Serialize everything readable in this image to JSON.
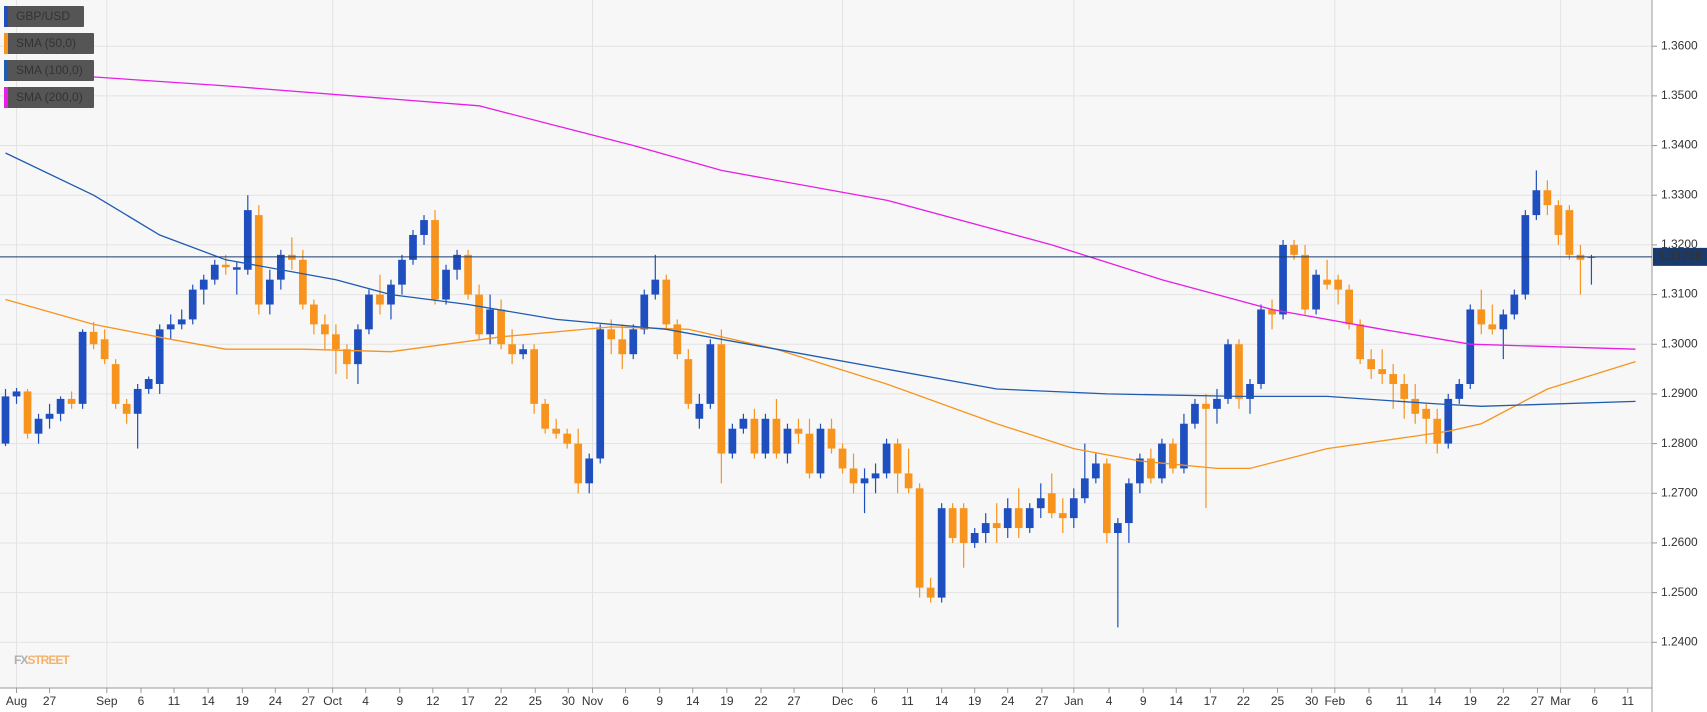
{
  "chart_data": {
    "type": "candlestick",
    "up_color": "#1f4fbf",
    "down_color": "#f7941d",
    "xlim": [
      -0.5,
      149.5
    ],
    "ylim": [
      1.2308,
      1.3693
    ],
    "yticks": [
      {
        "value": 1.24,
        "label": "1.2400"
      },
      {
        "value": 1.25,
        "label": "1.2500"
      },
      {
        "value": 1.26,
        "label": "1.2600"
      },
      {
        "value": 1.27,
        "label": "1.2700"
      },
      {
        "value": 1.28,
        "label": "1.2800"
      },
      {
        "value": 1.29,
        "label": "1.2900"
      },
      {
        "value": 1.3,
        "label": "1.3000"
      },
      {
        "value": 1.31,
        "label": "1.3100"
      },
      {
        "value": 1.32,
        "label": "1.3200"
      },
      {
        "value": 1.33,
        "label": "1.3300"
      },
      {
        "value": 1.34,
        "label": "1.3400"
      },
      {
        "value": 1.35,
        "label": "1.3500"
      },
      {
        "value": 1.36,
        "label": "1.3600"
      }
    ],
    "xticks": [
      {
        "value": 1,
        "label": "Aug"
      },
      {
        "value": 4,
        "label": "27"
      },
      {
        "value": 9.2,
        "label": "Sep"
      },
      {
        "value": 12.3,
        "label": "6"
      },
      {
        "value": 15.3,
        "label": "11"
      },
      {
        "value": 18.4,
        "label": "14"
      },
      {
        "value": 21.5,
        "label": "19"
      },
      {
        "value": 24.5,
        "label": "24"
      },
      {
        "value": 27.5,
        "label": "27"
      },
      {
        "value": 29.7,
        "label": "Oct"
      },
      {
        "value": 32.7,
        "label": "4"
      },
      {
        "value": 35.8,
        "label": "9"
      },
      {
        "value": 38.8,
        "label": "12"
      },
      {
        "value": 42,
        "label": "17"
      },
      {
        "value": 45,
        "label": "22"
      },
      {
        "value": 48.1,
        "label": "25"
      },
      {
        "value": 51.1,
        "label": "30"
      },
      {
        "value": 53.3,
        "label": "Nov"
      },
      {
        "value": 56.3,
        "label": "6"
      },
      {
        "value": 59.4,
        "label": "9"
      },
      {
        "value": 62.4,
        "label": "14"
      },
      {
        "value": 65.5,
        "label": "19"
      },
      {
        "value": 68.6,
        "label": "22"
      },
      {
        "value": 71.6,
        "label": "27"
      },
      {
        "value": 76,
        "label": "Dec"
      },
      {
        "value": 78.9,
        "label": "6"
      },
      {
        "value": 81.9,
        "label": "11"
      },
      {
        "value": 85,
        "label": "14"
      },
      {
        "value": 88,
        "label": "19"
      },
      {
        "value": 91,
        "label": "24"
      },
      {
        "value": 94.1,
        "label": "27"
      },
      {
        "value": 97,
        "label": "Jan"
      },
      {
        "value": 100.2,
        "label": "4"
      },
      {
        "value": 103.3,
        "label": "9"
      },
      {
        "value": 106.3,
        "label": "14"
      },
      {
        "value": 109.4,
        "label": "17"
      },
      {
        "value": 112.4,
        "label": "22"
      },
      {
        "value": 115.5,
        "label": "25"
      },
      {
        "value": 118.6,
        "label": "30"
      },
      {
        "value": 120.7,
        "label": "Feb"
      },
      {
        "value": 123.8,
        "label": "6"
      },
      {
        "value": 126.8,
        "label": "11"
      },
      {
        "value": 129.8,
        "label": "14"
      },
      {
        "value": 133,
        "label": "19"
      },
      {
        "value": 136,
        "label": "22"
      },
      {
        "value": 139.1,
        "label": "27"
      },
      {
        "value": 141.2,
        "label": "Mar"
      },
      {
        "value": 144.3,
        "label": "6"
      },
      {
        "value": 147.3,
        "label": "11"
      }
    ],
    "candle_name": "GBP/USD",
    "candles": [
      [
        1.28,
        1.291,
        1.2795,
        1.2895
      ],
      [
        1.2895,
        1.2912,
        1.288,
        1.2905
      ],
      [
        1.2905,
        1.291,
        1.281,
        1.282
      ],
      [
        1.282,
        1.286,
        1.28,
        1.285
      ],
      [
        1.285,
        1.288,
        1.283,
        1.286
      ],
      [
        1.286,
        1.2895,
        1.2845,
        1.289
      ],
      [
        1.289,
        1.2905,
        1.287,
        1.288
      ],
      [
        1.288,
        1.303,
        1.287,
        1.3025
      ],
      [
        1.3025,
        1.3045,
        1.299,
        1.3
      ],
      [
        1.301,
        1.303,
        1.296,
        1.297
      ],
      [
        1.296,
        1.297,
        1.287,
        1.288
      ],
      [
        1.288,
        1.289,
        1.284,
        1.286
      ],
      [
        1.286,
        1.292,
        1.279,
        1.291
      ],
      [
        1.291,
        1.2935,
        1.29,
        1.293
      ],
      [
        1.292,
        1.304,
        1.29,
        1.303
      ],
      [
        1.303,
        1.306,
        1.301,
        1.304
      ],
      [
        1.304,
        1.307,
        1.303,
        1.305
      ],
      [
        1.305,
        1.312,
        1.304,
        1.311
      ],
      [
        1.311,
        1.314,
        1.308,
        1.313
      ],
      [
        1.313,
        1.317,
        1.312,
        1.316
      ],
      [
        1.316,
        1.318,
        1.314,
        1.3155
      ],
      [
        1.315,
        1.3165,
        1.31,
        1.3155
      ],
      [
        1.315,
        1.33,
        1.314,
        1.327
      ],
      [
        1.326,
        1.328,
        1.306,
        1.308
      ],
      [
        1.308,
        1.315,
        1.306,
        1.313
      ],
      [
        1.313,
        1.319,
        1.311,
        1.318
      ],
      [
        1.318,
        1.3215,
        1.315,
        1.317
      ],
      [
        1.317,
        1.319,
        1.307,
        1.308
      ],
      [
        1.308,
        1.309,
        1.302,
        1.304
      ],
      [
        1.304,
        1.306,
        1.299,
        1.302
      ],
      [
        1.302,
        1.304,
        1.294,
        1.299
      ],
      [
        1.299,
        1.3,
        1.293,
        1.296
      ],
      [
        1.296,
        1.304,
        1.292,
        1.303
      ],
      [
        1.303,
        1.311,
        1.302,
        1.31
      ],
      [
        1.31,
        1.314,
        1.306,
        1.308
      ],
      [
        1.308,
        1.313,
        1.305,
        1.312
      ],
      [
        1.312,
        1.318,
        1.31,
        1.317
      ],
      [
        1.317,
        1.323,
        1.316,
        1.322
      ],
      [
        1.322,
        1.326,
        1.32,
        1.325
      ],
      [
        1.325,
        1.327,
        1.308,
        1.309
      ],
      [
        1.309,
        1.316,
        1.308,
        1.315
      ],
      [
        1.315,
        1.319,
        1.313,
        1.318
      ],
      [
        1.318,
        1.319,
        1.309,
        1.31
      ],
      [
        1.31,
        1.312,
        1.301,
        1.302
      ],
      [
        1.302,
        1.31,
        1.3,
        1.307
      ],
      [
        1.307,
        1.309,
        1.299,
        1.3
      ],
      [
        1.3,
        1.303,
        1.296,
        1.298
      ],
      [
        1.298,
        1.3,
        1.297,
        1.299
      ],
      [
        1.299,
        1.3,
        1.286,
        1.288
      ],
      [
        1.288,
        1.289,
        1.282,
        1.283
      ],
      [
        1.283,
        1.285,
        1.281,
        1.282
      ],
      [
        1.282,
        1.283,
        1.279,
        1.28
      ],
      [
        1.28,
        1.283,
        1.27,
        1.272
      ],
      [
        1.272,
        1.278,
        1.27,
        1.277
      ],
      [
        1.277,
        1.304,
        1.276,
        1.303
      ],
      [
        1.303,
        1.305,
        1.298,
        1.301
      ],
      [
        1.301,
        1.304,
        1.295,
        1.298
      ],
      [
        1.298,
        1.304,
        1.297,
        1.303
      ],
      [
        1.303,
        1.311,
        1.302,
        1.31
      ],
      [
        1.31,
        1.318,
        1.309,
        1.313
      ],
      [
        1.313,
        1.314,
        1.303,
        1.304
      ],
      [
        1.304,
        1.305,
        1.297,
        1.298
      ],
      [
        1.297,
        1.299,
        1.287,
        1.288
      ],
      [
        1.285,
        1.29,
        1.283,
        1.288
      ],
      [
        1.288,
        1.301,
        1.287,
        1.3
      ],
      [
        1.3,
        1.303,
        1.272,
        1.278
      ],
      [
        1.278,
        1.284,
        1.277,
        1.283
      ],
      [
        1.283,
        1.286,
        1.282,
        1.285
      ],
      [
        1.285,
        1.287,
        1.277,
        1.278
      ],
      [
        1.278,
        1.286,
        1.277,
        1.285
      ],
      [
        1.285,
        1.289,
        1.277,
        1.278
      ],
      [
        1.278,
        1.284,
        1.276,
        1.283
      ],
      [
        1.283,
        1.285,
        1.28,
        1.282
      ],
      [
        1.282,
        1.285,
        1.273,
        1.274
      ],
      [
        1.274,
        1.284,
        1.273,
        1.283
      ],
      [
        1.283,
        1.285,
        1.278,
        1.279
      ],
      [
        1.279,
        1.28,
        1.274,
        1.275
      ],
      [
        1.275,
        1.278,
        1.27,
        1.272
      ],
      [
        1.272,
        1.275,
        1.266,
        1.273
      ],
      [
        1.273,
        1.276,
        1.27,
        1.274
      ],
      [
        1.274,
        1.281,
        1.273,
        1.28
      ],
      [
        1.28,
        1.281,
        1.27,
        1.274
      ],
      [
        1.274,
        1.279,
        1.27,
        1.271
      ],
      [
        1.271,
        1.272,
        1.249,
        1.251
      ],
      [
        1.251,
        1.253,
        1.248,
        1.249
      ],
      [
        1.249,
        1.268,
        1.248,
        1.267
      ],
      [
        1.267,
        1.268,
        1.26,
        1.261
      ],
      [
        1.267,
        1.268,
        1.255,
        1.26
      ],
      [
        1.26,
        1.263,
        1.259,
        1.262
      ],
      [
        1.262,
        1.266,
        1.26,
        1.264
      ],
      [
        1.264,
        1.268,
        1.26,
        1.263
      ],
      [
        1.263,
        1.269,
        1.261,
        1.267
      ],
      [
        1.267,
        1.271,
        1.261,
        1.263
      ],
      [
        1.263,
        1.268,
        1.262,
        1.267
      ],
      [
        1.267,
        1.272,
        1.265,
        1.269
      ],
      [
        1.27,
        1.274,
        1.265,
        1.266
      ],
      [
        1.266,
        1.269,
        1.262,
        1.265
      ],
      [
        1.265,
        1.271,
        1.263,
        1.269
      ],
      [
        1.269,
        1.28,
        1.268,
        1.273
      ],
      [
        1.273,
        1.278,
        1.272,
        1.276
      ],
      [
        1.276,
        1.277,
        1.26,
        1.262
      ],
      [
        1.262,
        1.265,
        1.243,
        1.264
      ],
      [
        1.264,
        1.273,
        1.26,
        1.272
      ],
      [
        1.272,
        1.278,
        1.27,
        1.277
      ],
      [
        1.277,
        1.279,
        1.272,
        1.273
      ],
      [
        1.273,
        1.281,
        1.272,
        1.28
      ],
      [
        1.28,
        1.281,
        1.274,
        1.275
      ],
      [
        1.275,
        1.286,
        1.274,
        1.284
      ],
      [
        1.284,
        1.289,
        1.283,
        1.288
      ],
      [
        1.288,
        1.29,
        1.267,
        1.287
      ],
      [
        1.287,
        1.291,
        1.284,
        1.289
      ],
      [
        1.289,
        1.301,
        1.288,
        1.3
      ],
      [
        1.3,
        1.301,
        1.287,
        1.289
      ],
      [
        1.289,
        1.293,
        1.286,
        1.292
      ],
      [
        1.292,
        1.308,
        1.291,
        1.307
      ],
      [
        1.307,
        1.309,
        1.303,
        1.306
      ],
      [
        1.306,
        1.321,
        1.305,
        1.32
      ],
      [
        1.32,
        1.321,
        1.317,
        1.318
      ],
      [
        1.318,
        1.32,
        1.306,
        1.307
      ],
      [
        1.307,
        1.315,
        1.306,
        1.314
      ],
      [
        1.313,
        1.317,
        1.311,
        1.312
      ],
      [
        1.313,
        1.314,
        1.308,
        1.311
      ],
      [
        1.311,
        1.312,
        1.303,
        1.304
      ],
      [
        1.304,
        1.305,
        1.296,
        1.297
      ],
      [
        1.297,
        1.299,
        1.293,
        1.295
      ],
      [
        1.295,
        1.299,
        1.292,
        1.294
      ],
      [
        1.294,
        1.296,
        1.287,
        1.292
      ],
      [
        1.292,
        1.294,
        1.285,
        1.289
      ],
      [
        1.289,
        1.292,
        1.284,
        1.286
      ],
      [
        1.287,
        1.288,
        1.28,
        1.285
      ],
      [
        1.285,
        1.287,
        1.278,
        1.28
      ],
      [
        1.28,
        1.29,
        1.279,
        1.289
      ],
      [
        1.289,
        1.293,
        1.288,
        1.292
      ],
      [
        1.292,
        1.308,
        1.291,
        1.307
      ],
      [
        1.307,
        1.311,
        1.302,
        1.304
      ],
      [
        1.304,
        1.308,
        1.302,
        1.303
      ],
      [
        1.303,
        1.307,
        1.297,
        1.306
      ],
      [
        1.306,
        1.311,
        1.305,
        1.31
      ],
      [
        1.31,
        1.327,
        1.309,
        1.326
      ],
      [
        1.326,
        1.335,
        1.325,
        1.331
      ],
      [
        1.331,
        1.333,
        1.326,
        1.328
      ],
      [
        1.328,
        1.329,
        1.32,
        1.322
      ],
      [
        1.327,
        1.328,
        1.317,
        1.318
      ],
      [
        1.318,
        1.32,
        1.31,
        1.317
      ],
      [
        1.3175,
        1.318,
        1.312,
        1.3176
      ]
    ],
    "series": [
      {
        "name": "SMA (50,0)",
        "color": "#f7941d",
        "x": [
          0,
          8,
          15,
          20,
          27,
          35,
          45,
          55,
          62,
          70,
          80,
          90,
          97,
          103,
          110,
          113,
          120,
          128,
          131,
          134,
          140,
          148
        ],
        "values": [
          1.309,
          1.304,
          1.301,
          1.299,
          1.299,
          1.2985,
          1.3015,
          1.3035,
          1.303,
          1.299,
          1.292,
          1.284,
          1.279,
          1.2765,
          1.275,
          1.275,
          1.279,
          1.2815,
          1.2825,
          1.284,
          1.291,
          1.2965
        ]
      },
      {
        "name": "SMA (100,0)",
        "color": "#1f5bb0",
        "x": [
          0,
          8,
          14,
          20,
          30,
          35,
          42,
          50,
          60,
          70,
          80,
          90,
          100,
          112,
          120,
          130,
          134,
          148
        ],
        "values": [
          1.3385,
          1.33,
          1.322,
          1.317,
          1.313,
          1.31,
          1.308,
          1.305,
          1.303,
          1.299,
          1.295,
          1.291,
          1.29,
          1.2895,
          1.2895,
          1.288,
          1.2875,
          1.2885
        ]
      },
      {
        "name": "SMA (200,0)",
        "color": "#e61ee6",
        "x": [
          0,
          20,
          43,
          50,
          57,
          65,
          80,
          95,
          105,
          115,
          125,
          133,
          148
        ],
        "values": [
          1.355,
          1.352,
          1.348,
          1.344,
          1.34,
          1.335,
          1.329,
          1.32,
          1.313,
          1.307,
          1.303,
          1.3,
          1.299
        ]
      }
    ],
    "last_price": {
      "value": 1.31759,
      "label": "1.31759"
    },
    "last_color": "#1a3a6b",
    "watermark": [
      "FX",
      "STREET"
    ]
  }
}
